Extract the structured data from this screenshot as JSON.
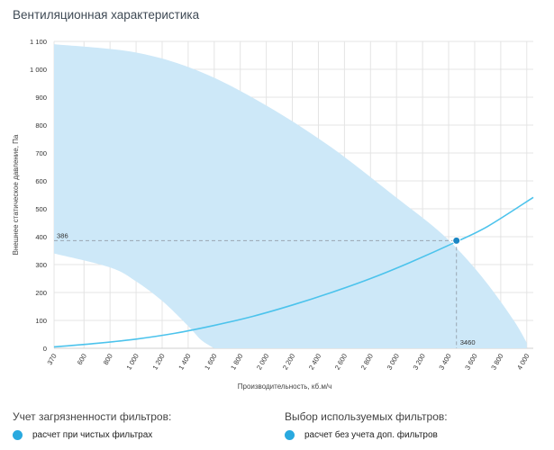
{
  "title": "Вентиляционная характеристика",
  "legend_left": {
    "title": "Учет загрязненности фильтров:",
    "item": "расчет при чистых фильтрах"
  },
  "legend_right": {
    "title": "Выбор используемых фильтров:",
    "item": "расчет без учета доп. фильтров"
  },
  "colors": {
    "area": "#cde8f8",
    "curve": "#4cc3ec",
    "point": "#1b86c4",
    "grid": "#e4e4e4",
    "dashed": "#9aa6b1"
  },
  "chart_data": {
    "type": "line",
    "xlabel": "Производительность, кб.м/ч",
    "ylabel": "Внешнее статическое давление, Па",
    "xlim": [
      370,
      4050
    ],
    "ylim": [
      0,
      1100
    ],
    "x_ticks": [
      370,
      600,
      800,
      1000,
      1200,
      1400,
      1600,
      1800,
      2000,
      2200,
      2400,
      2600,
      2800,
      3000,
      3200,
      3400,
      3600,
      3800,
      4000
    ],
    "x_tick_labels": [
      "370",
      "600",
      "800",
      "1 000",
      "1 200",
      "1 400",
      "1 600",
      "1 800",
      "2 000",
      "2 200",
      "2 400",
      "2 600",
      "2 800",
      "3 000",
      "3 200",
      "3 400",
      "3 600",
      "3 800",
      "4 000"
    ],
    "y_ticks": [
      0,
      100,
      200,
      300,
      400,
      500,
      600,
      700,
      800,
      900,
      1000,
      1100
    ],
    "y_tick_labels": [
      "0",
      "100",
      "200",
      "300",
      "400",
      "500",
      "600",
      "700",
      "800",
      "900",
      "1 000",
      "1 100"
    ],
    "area_upper": {
      "x": [
        370,
        1000,
        1500,
        2000,
        2500,
        3000,
        3300,
        3500,
        3700,
        3900,
        4000
      ],
      "y": [
        1090,
        1060,
        990,
        870,
        720,
        540,
        430,
        340,
        230,
        100,
        20
      ]
    },
    "area_lower": {
      "x": [
        370,
        800,
        1000,
        1200,
        1400,
        1500,
        1600
      ],
      "y": [
        340,
        290,
        240,
        170,
        80,
        30,
        0
      ]
    },
    "series": [
      {
        "x": [
          370,
          700,
          1000,
          1300,
          1600,
          1900,
          2200,
          2500,
          2800,
          3100,
          3460,
          3700,
          4050
        ],
        "y": [
          5,
          18,
          33,
          54,
          82,
          115,
          155,
          200,
          250,
          307,
          382,
          437,
          541
        ]
      }
    ],
    "operating_point": {
      "x": 3460,
      "y": 386,
      "x_label": "3460",
      "y_label": "386"
    }
  }
}
